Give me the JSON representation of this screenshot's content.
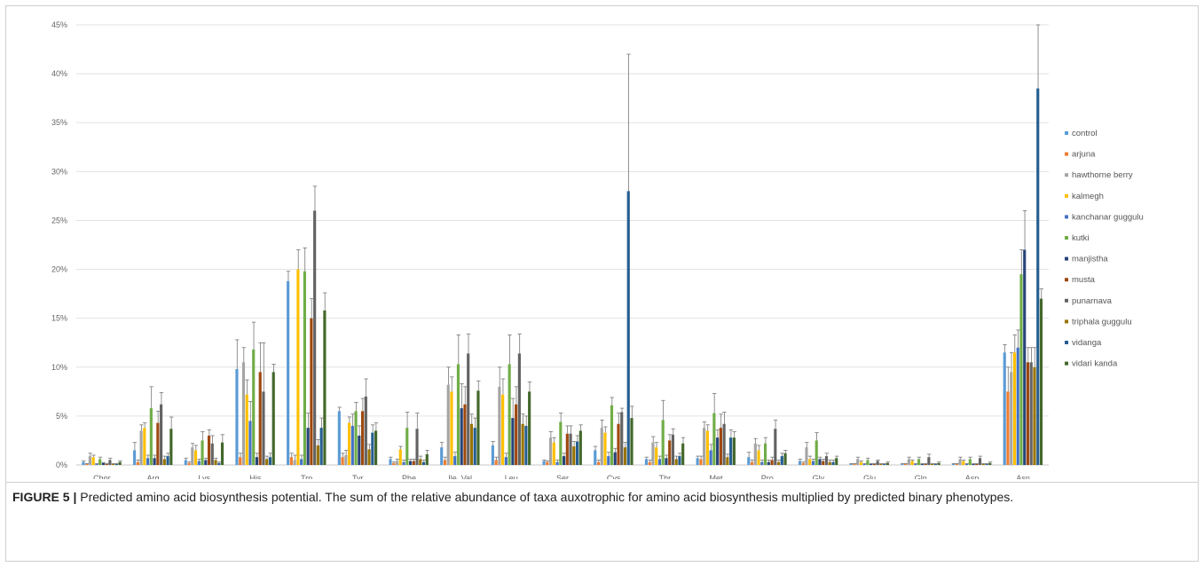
{
  "caption": {
    "label": "FIGURE 5 |",
    "text": " Predicted amino acid biosynthesis potential. The sum of the relative abundance of taxa auxotrophic for amino acid biosynthesis multiplied by predicted binary phenotypes."
  },
  "chart_data": {
    "type": "bar",
    "title": "",
    "xlabel": "",
    "ylabel": "",
    "ylim": [
      0,
      45
    ],
    "y_unit": "%",
    "y_ticks": [
      "0%",
      "5%",
      "10%",
      "15%",
      "20%",
      "25%",
      "30%",
      "35%",
      "40%",
      "45%"
    ],
    "grid": true,
    "error_bars": true,
    "legend_position": "right",
    "categories": [
      "Chor",
      "Arg",
      "Lys",
      "His",
      "Trp",
      "Tyr",
      "Phe",
      "Ile_Val",
      "Leu",
      "Ser",
      "Cys",
      "Thr",
      "Met",
      "Pro",
      "Gly",
      "Glu",
      "Gln",
      "Asp",
      "Asn"
    ],
    "series": [
      {
        "name": "control",
        "color": "#5b9bd5",
        "values": [
          0.3,
          1.5,
          0.5,
          9.8,
          18.8,
          5.5,
          0.6,
          1.8,
          2.0,
          0.4,
          1.5,
          0.6,
          0.7,
          0.8,
          0.4,
          0.1,
          0.1,
          0.1,
          11.5
        ],
        "errors": [
          0.1,
          0.8,
          0.2,
          3.0,
          1.0,
          0.4,
          0.2,
          0.5,
          0.4,
          0.1,
          0.4,
          0.2,
          0.2,
          0.5,
          0.2,
          0.05,
          0.05,
          0.05,
          0.8
        ]
      },
      {
        "name": "arjuna",
        "color": "#ed7d31",
        "values": [
          0.1,
          0.3,
          0.2,
          0.8,
          0.8,
          0.8,
          0.2,
          0.5,
          0.5,
          0.3,
          0.3,
          0.3,
          0.6,
          0.3,
          0.2,
          0.1,
          0.1,
          0.1,
          7.5
        ],
        "errors": [
          0.05,
          0.2,
          0.1,
          0.4,
          0.4,
          0.4,
          0.1,
          0.3,
          0.3,
          0.1,
          0.2,
          0.2,
          0.3,
          0.2,
          0.1,
          0.05,
          0.05,
          0.05,
          2.5
        ]
      },
      {
        "name": "hawthorne berry",
        "color": "#a5a5a5",
        "values": [
          0.9,
          3.5,
          1.8,
          10.5,
          0.5,
          1.0,
          0.4,
          8.2,
          8.0,
          2.8,
          3.8,
          2.3,
          3.8,
          2.2,
          1.8,
          0.6,
          0.6,
          0.6,
          9.5
        ],
        "errors": [
          0.3,
          0.6,
          0.4,
          1.5,
          0.5,
          0.5,
          0.2,
          1.8,
          2.0,
          0.6,
          0.8,
          0.6,
          0.6,
          0.5,
          0.5,
          0.2,
          0.2,
          0.2,
          2.0
        ]
      },
      {
        "name": "kalmegh",
        "color": "#ffc000",
        "values": [
          0.8,
          3.8,
          1.5,
          7.2,
          20.0,
          4.3,
          1.6,
          7.5,
          7.2,
          2.3,
          3.3,
          1.8,
          3.5,
          1.5,
          0.6,
          0.3,
          0.4,
          0.4,
          11.5
        ],
        "errors": [
          0.2,
          0.5,
          0.5,
          1.5,
          2.0,
          0.6,
          0.3,
          1.5,
          1.6,
          0.5,
          0.6,
          0.5,
          0.6,
          0.5,
          0.3,
          0.1,
          0.1,
          0.1,
          1.8
        ]
      },
      {
        "name": "kanchanar guggulu",
        "color": "#4472c4",
        "values": [
          0.1,
          0.7,
          0.4,
          4.5,
          0.6,
          4.0,
          0.3,
          0.9,
          0.8,
          0.3,
          0.9,
          0.6,
          1.5,
          0.3,
          0.4,
          0.1,
          0.1,
          0.1,
          12.0
        ],
        "errors": [
          0.05,
          0.3,
          0.2,
          2.0,
          0.4,
          1.2,
          0.2,
          0.4,
          0.4,
          0.2,
          0.4,
          0.3,
          0.6,
          0.2,
          0.2,
          0.05,
          0.05,
          0.05,
          1.8
        ]
      },
      {
        "name": "kutki",
        "color": "#70ad47",
        "values": [
          0.6,
          5.8,
          2.5,
          11.8,
          19.8,
          5.5,
          3.8,
          10.3,
          10.3,
          4.4,
          6.1,
          4.6,
          5.3,
          2.2,
          2.5,
          0.5,
          0.6,
          0.6,
          19.5
        ],
        "errors": [
          0.2,
          2.2,
          0.9,
          2.8,
          2.4,
          0.9,
          1.6,
          3.0,
          3.0,
          0.9,
          0.8,
          2.0,
          2.0,
          0.6,
          0.8,
          0.2,
          0.2,
          0.2,
          2.5
        ]
      },
      {
        "name": "manjistha",
        "color": "#264478",
        "values": [
          0.2,
          0.7,
          0.5,
          0.8,
          3.8,
          3.0,
          0.4,
          5.8,
          4.8,
          0.9,
          1.3,
          0.7,
          2.8,
          0.3,
          0.6,
          0.1,
          0.1,
          0.1,
          22.0
        ],
        "errors": [
          0.05,
          0.3,
          0.2,
          0.4,
          1.5,
          1.0,
          0.2,
          2.5,
          2.0,
          0.3,
          0.4,
          0.3,
          0.8,
          0.2,
          0.2,
          0.05,
          0.05,
          0.05,
          4.0
        ]
      },
      {
        "name": "musta",
        "color": "#9e480e",
        "values": [
          0.1,
          4.3,
          3.0,
          9.5,
          15.0,
          5.5,
          0.4,
          6.2,
          6.2,
          3.2,
          4.2,
          2.5,
          3.8,
          0.5,
          0.4,
          0.1,
          0.1,
          0.1,
          10.5
        ],
        "errors": [
          0.05,
          1.2,
          0.6,
          3.0,
          2.0,
          1.3,
          0.2,
          1.8,
          1.8,
          0.8,
          1.1,
          0.6,
          1.4,
          0.3,
          0.2,
          0.05,
          0.05,
          0.05,
          1.5
        ]
      },
      {
        "name": "punarnava",
        "color": "#636363",
        "values": [
          0.5,
          6.2,
          2.2,
          7.5,
          26.0,
          7.0,
          3.7,
          11.4,
          11.4,
          3.2,
          5.4,
          3.1,
          4.2,
          3.7,
          0.9,
          0.4,
          0.8,
          0.7,
          10.5
        ],
        "errors": [
          0.2,
          1.2,
          0.8,
          5.0,
          2.5,
          1.8,
          1.6,
          2.0,
          2.0,
          0.8,
          0.4,
          0.6,
          1.2,
          0.9,
          0.3,
          0.1,
          0.3,
          0.2,
          1.5
        ]
      },
      {
        "name": "triphala guggulu",
        "color": "#997300",
        "values": [
          0.1,
          0.6,
          0.5,
          0.6,
          2.0,
          1.6,
          0.6,
          4.2,
          4.2,
          1.9,
          1.8,
          0.6,
          0.8,
          0.3,
          0.3,
          0.1,
          0.1,
          0.1,
          10.0
        ],
        "errors": [
          0.05,
          0.3,
          0.2,
          0.3,
          0.6,
          0.5,
          0.3,
          1.0,
          1.0,
          0.5,
          0.5,
          0.3,
          0.3,
          0.2,
          0.2,
          0.05,
          0.05,
          0.05,
          2.0
        ]
      },
      {
        "name": "vidanga",
        "color": "#255e91",
        "values": [
          0.1,
          0.9,
          0.2,
          0.8,
          3.8,
          3.3,
          0.3,
          3.8,
          4.0,
          2.4,
          28.0,
          0.9,
          2.8,
          0.9,
          0.3,
          0.1,
          0.1,
          0.1,
          38.5
        ],
        "errors": [
          0.05,
          0.3,
          0.1,
          0.4,
          1.0,
          0.8,
          0.2,
          1.0,
          1.0,
          0.6,
          14.0,
          0.3,
          0.8,
          0.3,
          0.2,
          0.05,
          0.05,
          0.05,
          6.5
        ]
      },
      {
        "name": "vidari kanda",
        "color": "#43682b",
        "values": [
          0.3,
          3.7,
          2.3,
          9.5,
          15.8,
          3.5,
          1.1,
          7.6,
          7.5,
          3.5,
          4.8,
          2.2,
          2.8,
          1.2,
          0.7,
          0.2,
          0.2,
          0.2,
          17.0
        ],
        "errors": [
          0.1,
          1.2,
          0.8,
          0.8,
          1.8,
          0.8,
          0.4,
          1.0,
          1.0,
          0.6,
          1.2,
          0.6,
          0.6,
          0.3,
          0.2,
          0.1,
          0.1,
          0.1,
          1.0
        ]
      }
    ]
  }
}
